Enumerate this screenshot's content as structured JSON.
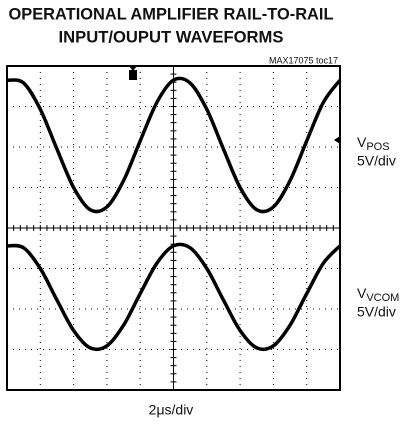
{
  "chart_data": {
    "type": "line",
    "title": [
      "OPERATIONAL AMPLIFIER RAIL-TO-RAIL",
      "INPUT/OUPUT WAVEFORMS"
    ],
    "note": "MAX17075 toc17",
    "xlabel": "2μs/div",
    "x": [
      0,
      0.5,
      1,
      1.5,
      2,
      2.5,
      3,
      3.5,
      4,
      4.5,
      5,
      5.5,
      6,
      6.5,
      7,
      7.5,
      8,
      8.5,
      9,
      9.5,
      10
    ],
    "xlim": [
      0,
      10
    ],
    "xticks": [
      1,
      2,
      3,
      4,
      5,
      6,
      7,
      8,
      9
    ],
    "ylim": [
      -4,
      4
    ],
    "yticks": [
      -3,
      -2,
      -1,
      0,
      1,
      2,
      3
    ],
    "grid": true,
    "series": [
      {
        "name": "V",
        "subscript": "POS",
        "scale": "5V/div",
        "color": "#000000",
        "values": [
          3.65,
          3.58,
          2.93,
          1.95,
          1.0,
          0.45,
          0.52,
          1.17,
          2.15,
          3.1,
          3.65,
          3.58,
          2.93,
          1.95,
          1.0,
          0.45,
          0.52,
          1.17,
          2.15,
          3.1,
          3.65
        ]
      },
      {
        "name": "V",
        "subscript": "VCOM",
        "scale": "5V/div",
        "color": "#000000",
        "values": [
          -0.44,
          -0.49,
          -1.0,
          -1.78,
          -2.53,
          -2.96,
          -2.91,
          -2.4,
          -1.62,
          -0.87,
          -0.44,
          -0.49,
          -1.0,
          -1.78,
          -2.53,
          -2.96,
          -2.91,
          -2.4,
          -1.62,
          -0.87,
          -0.44
        ]
      }
    ]
  }
}
